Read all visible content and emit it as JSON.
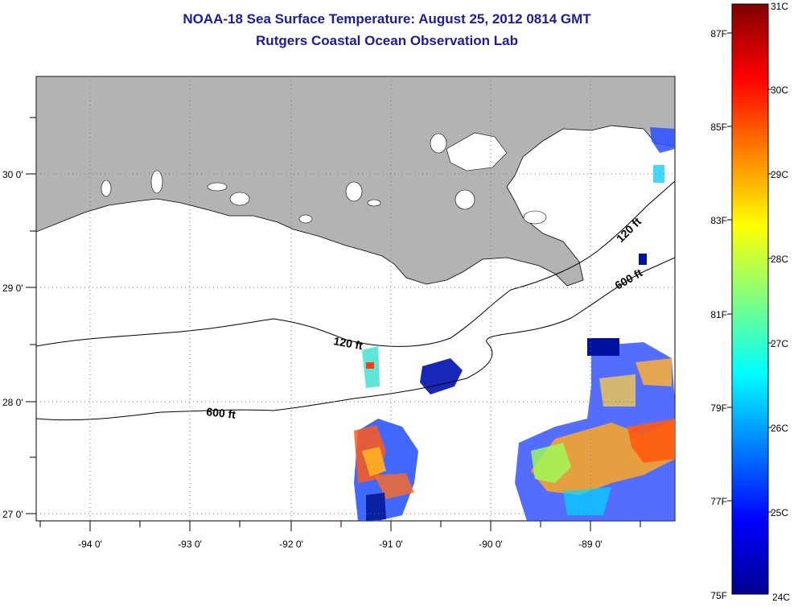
{
  "header": {
    "title": "NOAA-18 Sea Surface Temperature:  August 25, 2012 0814 GMT",
    "subtitle": "Rutgers Coastal Ocean Observation Lab"
  },
  "map": {
    "lon_ticks": [
      "-94 0'",
      "-93 0'",
      "-92 0'",
      "-91 0'",
      "-90 0'",
      "-89 0'"
    ],
    "lat_ticks": [
      "30 0'",
      "29 0'",
      "28 0'",
      "27 0'"
    ],
    "isobath_labels": [
      {
        "key": "i120w",
        "text": "120 ft"
      },
      {
        "key": "i600w",
        "text": "600 ft"
      },
      {
        "key": "i120e",
        "text": "120 ft"
      },
      {
        "key": "i600e",
        "text": "600 ft"
      }
    ],
    "colors": {
      "land": "#b3b3b3",
      "grid": "#777777",
      "coast": "#000000"
    }
  },
  "colorbar": {
    "fahrenheit_labels": [
      "87F",
      "85F",
      "83F",
      "81F",
      "79F",
      "77F",
      "75F"
    ],
    "celsius_labels": [
      "31C",
      "30C",
      "29C",
      "28C",
      "27C",
      "26C",
      "25C",
      "24C"
    ],
    "colormap": "jet"
  }
}
